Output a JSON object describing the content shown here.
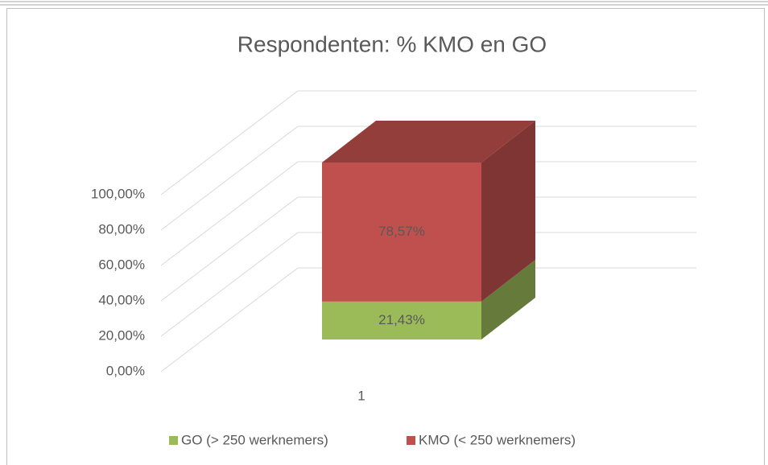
{
  "chart_data": {
    "type": "bar3d_stacked",
    "title": "Respondenten: % KMO en GO",
    "categories": [
      "1"
    ],
    "series": [
      {
        "name": "GO (> 250 werknemers)",
        "color": "#9bbb59",
        "values": [
          21.43
        ],
        "value_labels": [
          "21,43%"
        ]
      },
      {
        "name": "KMO (< 250 werknemers)",
        "color": "#c0504d",
        "values": [
          78.57
        ],
        "value_labels": [
          "78,57%"
        ]
      }
    ],
    "ylim": [
      0,
      100
    ],
    "yticks": [
      {
        "value": 0,
        "label": "0,00%"
      },
      {
        "value": 20,
        "label": "20,00%"
      },
      {
        "value": 40,
        "label": "40,00%"
      },
      {
        "value": 60,
        "label": "60,00%"
      },
      {
        "value": 80,
        "label": "80,00%"
      },
      {
        "value": 100,
        "label": "100,00%"
      }
    ],
    "grid": true
  }
}
